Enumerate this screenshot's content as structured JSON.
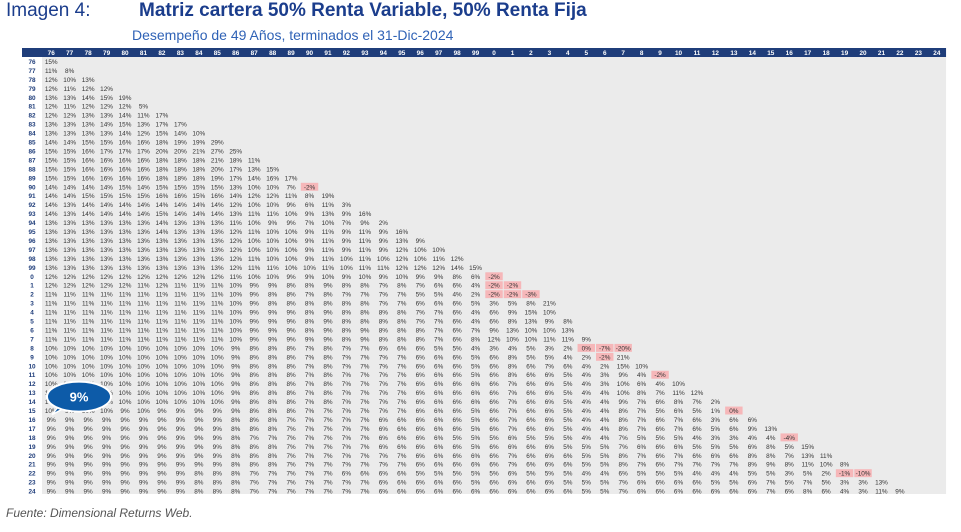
{
  "header": {
    "label": "Imagen 4:",
    "title": "Matriz cartera 50% Renta Variable, 50% Renta Fija",
    "subtitle": "Desempeño de 49 Años, terminados el  31-Dic-2024"
  },
  "footer": {
    "source": "Fuente: Dimensional Returns Web."
  },
  "callout": {
    "text": "9%",
    "fill": "#0d5ba8",
    "border": "#ffffff",
    "text_color": "#ffffff"
  },
  "colors": {
    "header_band": "#1f3d7a",
    "header_text": "#ffffff",
    "row_label_bg": "#ffffff",
    "row_label_text": "#1f3d7a",
    "grid_bg": "#ebebeb",
    "cell_text": "#333333",
    "negative_bg": "#f6b7b9"
  },
  "chart_data": {
    "type": "heatmap",
    "title": "Matriz cartera 50% Renta Variable, 50% Renta Fija",
    "subtitle": "Desempeño de 49 Años, terminados el  31-Dic-2024",
    "columns": [
      "76",
      "77",
      "78",
      "79",
      "80",
      "81",
      "82",
      "83",
      "84",
      "85",
      "86",
      "87",
      "88",
      "89",
      "90",
      "91",
      "92",
      "93",
      "94",
      "95",
      "96",
      "97",
      "98",
      "99",
      "0",
      "1",
      "2",
      "3",
      "4",
      "5",
      "6",
      "7",
      "8",
      "9",
      "10",
      "11",
      "12",
      "13",
      "14",
      "15",
      "16",
      "17",
      "18",
      "19",
      "20",
      "21",
      "22",
      "23",
      "24"
    ],
    "rows": [
      "76",
      "77",
      "78",
      "79",
      "80",
      "81",
      "82",
      "83",
      "84",
      "85",
      "86",
      "87",
      "88",
      "89",
      "90",
      "91",
      "92",
      "93",
      "94",
      "95",
      "96",
      "97",
      "98",
      "99",
      "0",
      "1",
      "2",
      "3",
      "4",
      "5",
      "6",
      "7",
      "8",
      "9",
      "10",
      "11",
      "12",
      "13",
      "14",
      "15",
      "16",
      "17",
      "18",
      "19",
      "20",
      "21",
      "22",
      "23",
      "24"
    ],
    "cells": [
      "15%",
      "11% 8%",
      "12% 10% 13%",
      "12% 11% 12% 12%",
      "13% 13% 14% 15% 19%",
      "12% 11% 12% 12% 12% 5%",
      "12% 12% 13% 13% 14% 11% 17%",
      "13% 13% 13% 14% 15% 13% 17% 17%",
      "13% 13% 13% 13% 14% 12% 15% 14% 10%",
      "14% 14% 15% 15% 16% 16% 18% 19% 19% 29%",
      "15% 15% 16% 17% 17% 17% 20% 20% 21% 27% 25%",
      "15% 15% 16% 16% 16% 16% 18% 18% 18% 21% 18% 11%",
      "15% 15% 16% 16% 16% 16% 18% 18% 18% 20% 17% 13% 15%",
      "15% 15% 16% 16% 16% 16% 18% 18% 18% 19% 17% 14% 16% 17%",
      "14% 14% 14% 14% 15% 14% 15% 15% 15% 15% 13% 10% 10% 7% -2%",
      "14% 14% 15% 15% 15% 15% 16% 16% 15% 16% 14% 12% 12% 11% 8% 19%",
      "14% 13% 14% 14% 14% 14% 14% 14% 14% 14% 12% 10% 10% 9% 6% 11% 3%",
      "14% 13% 14% 14% 14% 14% 15% 14% 14% 14% 13% 11% 11% 10% 9% 13% 9% 16%",
      "13% 13% 13% 13% 13% 13% 14% 13% 13% 13% 11% 10% 9% 9% 7% 10% 7% 9% 2%",
      "13% 13% 13% 13% 13% 13% 14% 13% 13% 13% 12% 11% 10% 10% 9% 11% 9% 11% 9% 16%",
      "13% 13% 13% 13% 13% 13% 13% 13% 13% 13% 12% 10% 10% 10% 9% 11% 9% 11% 9% 13% 9%",
      "13% 13% 13% 13% 13% 13% 13% 13% 13% 13% 12% 10% 10% 10% 9% 11% 9% 11% 9% 12% 10% 10%",
      "13% 13% 13% 13% 13% 13% 13% 13% 13% 13% 12% 11% 10% 10% 9% 11% 10% 11% 10% 12% 10% 11% 12%",
      "13% 13% 13% 13% 13% 13% 13% 13% 13% 13% 12% 11% 11% 10% 10% 11% 10% 11% 11% 12% 12% 12% 14% 15%",
      "12% 12% 12% 12% 12% 12% 12% 12% 12% 12% 11% 10% 10% 9% 9% 10% 9% 10% 9% 10% 9% 9% 8% 6% -2%",
      "12% 12% 12% 12% 12% 11% 12% 11% 11% 11% 10% 9% 9% 8% 8% 9% 8% 8% 7% 8% 7% 6% 6% 4% -2% -2%",
      "11% 11% 11% 11% 11% 11% 11% 11% 11% 11% 10% 9% 8% 8% 7% 8% 7% 7% 7% 7% 5% 5% 4% 2% -2% -2% -3%",
      "11% 11% 11% 11% 11% 11% 11% 11% 11% 11% 10% 9% 8% 8% 8% 8% 8% 8% 7% 7% 6% 6% 6% 5% 3% 5% 8% 21%",
      "11% 11% 11% 11% 11% 11% 11% 11% 11% 11% 10% 9% 9% 9% 8% 9% 8% 8% 8% 8% 7% 7% 6% 4% 6% 9% 15% 10%",
      "11% 11% 11% 11% 11% 11% 11% 11% 11% 11% 10% 9% 9% 9% 8% 9% 8% 8% 8% 8% 7% 7% 6% 4% 6% 8% 13% 9% 8%",
      "11% 11% 11% 11% 11% 11% 11% 11% 11% 11% 10% 9% 9% 9% 8% 9% 8% 9% 8% 8% 8% 7% 6% 7% 9% 13% 10% 10% 13%",
      "11% 11% 11% 11% 11% 11% 11% 11% 11% 11% 10% 9% 9% 9% 9% 9% 8% 9% 8% 8% 8% 7% 6% 8% 12% 10% 10% 11% 11% 9%",
      "10% 10% 10% 10% 10% 10% 10% 10% 10% 10% 9% 8% 8% 8% 7% 8% 7% 7% 6% 6% 6% 5% 5% 4% 3% 4% 5% 3% 2% 0% -7% -20%",
      "10% 10% 10% 10% 10% 10% 10% 10% 10% 10% 9% 8% 8% 8% 7% 8% 7% 7% 7% 7% 6% 6% 6% 5% 6% 8% 5% 5% 4% 2% -2% 21%",
      "10% 10% 10% 10% 10% 10% 10% 10% 10% 10% 9% 8% 8% 8% 7% 8% 7% 7% 7% 7% 6% 6% 6% 5% 6% 8% 6% 7% 6% 4% 2% 15% 10%",
      "10% 10% 10% 10% 10% 10% 10% 10% 10% 10% 9% 8% 8% 8% 7% 8% 7% 7% 7% 7% 6% 6% 6% 5% 6% 8% 6% 6% 5% 4% 3% 9% 4% -2%",
      "10% 10% 10% 10% 10% 10% 10% 10% 10% 10% 9% 8% 8% 8% 7% 8% 7% 7% 7% 7% 6% 6% 6% 6% 6% 7% 6% 6% 5% 4% 3% 10% 6% 4% 10%",
      "10% 10% 10% 10% 10% 10% 10% 10% 10% 10% 9% 8% 8% 8% 7% 8% 7% 7% 7% 7% 6% 6% 6% 6% 6% 7% 6% 6% 5% 4% 4% 10% 8% 7% 11% 12%",
      "10% 10% 10% 10% 10% 10% 10% 10% 10% 10% 9% 8% 8% 8% 7% 8% 7% 7% 7% 7% 6% 6% 6% 6% 6% 7% 6% 6% 5% 4% 4% 9% 7% 6% 8% 7% 2%",
      "10% 9% 10% 10% 9% 10% 9% 9% 9% 9% 9% 8% 8% 8% 7% 7% 7% 7% 7% 7% 6% 6% 6% 5% 6% 7% 6% 6% 5% 4% 4% 8% 7% 5% 6% 5% 1% 0%",
      "9% 9% 9% 9% 9% 9% 9% 9% 9% 9% 8% 8% 8% 7% 7% 7% 7% 7% 6% 6% 6% 6% 6% 5% 6% 7% 6% 6% 5% 4% 4% 8% 7% 6% 7% 6% 3% 6% 6%",
      "9% 9% 9% 9% 9% 9% 9% 9% 9% 9% 8% 8% 8% 7% 7% 7% 7% 7% 6% 6% 6% 6% 6% 5% 6% 7% 6% 6% 5% 4% 4% 8% 7% 6% 7% 6% 5% 6% 9% 13%",
      "9% 9% 9% 9% 9% 9% 9% 9% 9% 9% 8% 7% 7% 7% 7% 7% 7% 7% 6% 6% 6% 6% 5% 5% 5% 6% 5% 5% 5% 4% 4% 7% 5% 5% 5% 4% 3% 3% 4% 4% -4%",
      "9% 9% 9% 9% 9% 9% 9% 9% 9% 9% 8% 8% 8% 7% 7% 7% 7% 7% 6% 6% 6% 6% 6% 5% 6% 6% 6% 6% 5% 5% 5% 7% 6% 6% 6% 5% 5% 5% 6% 8% 5% 15%",
      "9% 9% 9% 9% 9% 9% 9% 9% 9% 9% 8% 8% 8% 7% 7% 7% 7% 7% 7% 7% 6% 6% 6% 6% 6% 7% 6% 6% 6% 5% 5% 8% 7% 6% 7% 6% 6% 6% 8% 8% 7% 13% 11%",
      "9% 9% 9% 9% 9% 9% 9% 9% 9% 9% 8% 8% 8% 7% 7% 7% 7% 7% 7% 7% 6% 6% 6% 6% 6% 7% 6% 6% 6% 5% 5% 8% 7% 6% 7% 7% 7% 7% 8% 9% 8% 11% 10% 8%",
      "9% 9% 9% 9% 9% 9% 9% 9% 8% 8% 8% 7% 7% 7% 7% 7% 6% 6% 6% 6% 5% 5% 5% 5% 5% 6% 5% 5% 5% 4% 4% 6% 5% 5% 5% 4% 4% 4% 5% 5% 3% 5% 2% -1% -10%",
      "9% 9% 9% 9% 9% 9% 9% 9% 8% 8% 8% 7% 7% 7% 7% 7% 7% 7% 6% 6% 6% 6% 6% 5% 6% 6% 6% 6% 5% 5% 5% 7% 6% 6% 6% 6% 5% 5% 6% 7% 5% 7% 5% 3% 3% 13%",
      "9% 9% 9% 9% 9% 9% 9% 9% 8% 8% 8% 7% 7% 7% 7% 7% 7% 7% 6% 6% 6% 6% 6% 6% 6% 6% 6% 6% 6% 5% 5% 7% 6% 6% 6% 6% 6% 6% 6% 7% 6% 8% 6% 4% 3% 11% 9%"
    ]
  }
}
